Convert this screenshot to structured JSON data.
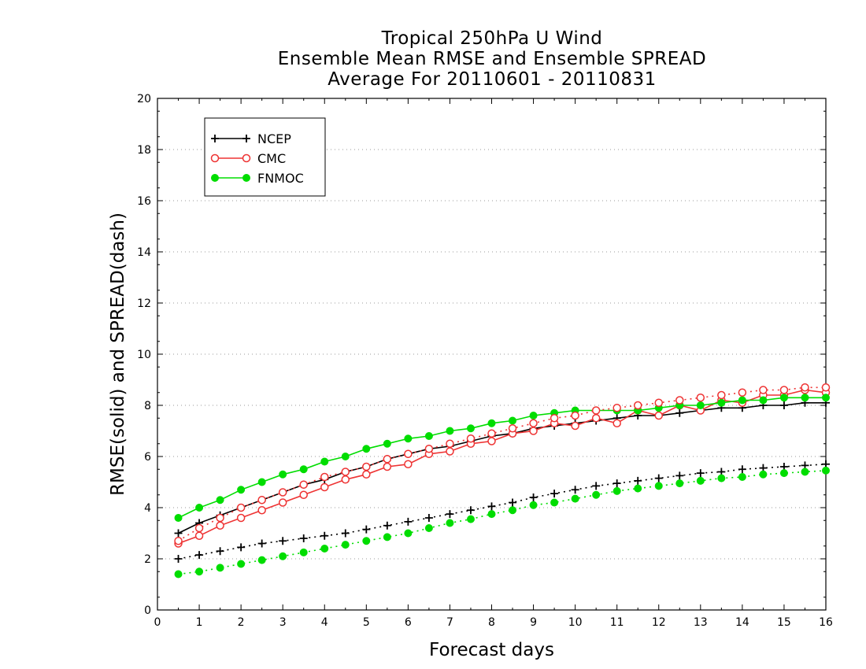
{
  "chart_data": {
    "type": "line",
    "title_lines": [
      "Tropical 250hPa U Wind",
      "Ensemble Mean RMSE and Ensemble SPREAD",
      "Average For 20110601 - 20110831"
    ],
    "xlabel": "Forecast days",
    "ylabel": "RMSE(solid) and SPREAD(dash)",
    "xlim": [
      0,
      16
    ],
    "ylim": [
      0,
      20
    ],
    "xticks": [
      0,
      1,
      2,
      3,
      4,
      5,
      6,
      7,
      8,
      9,
      10,
      11,
      12,
      13,
      14,
      15,
      16
    ],
    "yticks": [
      0,
      2,
      4,
      6,
      8,
      10,
      12,
      14,
      16,
      18,
      20
    ],
    "grid": "horizontal-dotted",
    "legend_position": "top-left",
    "x": [
      0.5,
      1,
      1.5,
      2,
      2.5,
      3,
      3.5,
      4,
      4.5,
      5,
      5.5,
      6,
      6.5,
      7,
      7.5,
      8,
      8.5,
      9,
      9.5,
      10,
      10.5,
      11,
      11.5,
      12,
      12.5,
      13,
      13.5,
      14,
      14.5,
      15,
      15.5,
      16
    ],
    "series": [
      {
        "name": "NCEP",
        "color": "#000000",
        "marker": "plus",
        "line": "solid",
        "values": [
          3.0,
          3.4,
          3.7,
          4.0,
          4.3,
          4.6,
          4.9,
          5.1,
          5.4,
          5.6,
          5.9,
          6.1,
          6.3,
          6.4,
          6.6,
          6.8,
          6.9,
          7.1,
          7.2,
          7.3,
          7.4,
          7.5,
          7.6,
          7.6,
          7.7,
          7.8,
          7.9,
          7.9,
          8.0,
          8.0,
          8.1,
          8.1
        ]
      },
      {
        "name": "CMC",
        "color": "#ee3333",
        "marker": "open-circle",
        "line": "solid",
        "values": [
          2.6,
          2.9,
          3.3,
          3.6,
          3.9,
          4.2,
          4.5,
          4.8,
          5.1,
          5.3,
          5.6,
          5.7,
          6.1,
          6.2,
          6.5,
          6.6,
          6.9,
          7.0,
          7.3,
          7.2,
          7.5,
          7.3,
          7.8,
          7.6,
          8.0,
          7.8,
          8.2,
          8.1,
          8.4,
          8.4,
          8.6,
          8.5
        ]
      },
      {
        "name": "FNMOC",
        "color": "#00dd00",
        "marker": "filled-circle",
        "line": "solid",
        "values": [
          3.6,
          4.0,
          4.3,
          4.7,
          5.0,
          5.3,
          5.5,
          5.8,
          6.0,
          6.3,
          6.5,
          6.7,
          6.8,
          7.0,
          7.1,
          7.3,
          7.4,
          7.6,
          7.7,
          7.8,
          7.8,
          7.8,
          7.8,
          7.9,
          8.0,
          8.0,
          8.1,
          8.2,
          8.2,
          8.3,
          8.3,
          8.3
        ]
      },
      {
        "name": "NCEP",
        "color": "#000000",
        "marker": "plus",
        "line": "dash",
        "values": [
          2.0,
          2.15,
          2.3,
          2.45,
          2.6,
          2.7,
          2.8,
          2.9,
          3.0,
          3.15,
          3.3,
          3.45,
          3.6,
          3.75,
          3.9,
          4.05,
          4.2,
          4.4,
          4.55,
          4.7,
          4.85,
          4.95,
          5.05,
          5.15,
          5.25,
          5.35,
          5.4,
          5.5,
          5.55,
          5.6,
          5.65,
          5.7
        ]
      },
      {
        "name": "CMC",
        "color": "#ee3333",
        "marker": "open-circle",
        "line": "dash",
        "values": [
          2.7,
          3.2,
          3.6,
          4.0,
          4.3,
          4.6,
          4.9,
          5.2,
          5.4,
          5.6,
          5.9,
          6.1,
          6.3,
          6.5,
          6.7,
          6.9,
          7.1,
          7.3,
          7.5,
          7.6,
          7.8,
          7.9,
          8.0,
          8.1,
          8.2,
          8.3,
          8.4,
          8.5,
          8.6,
          8.6,
          8.7,
          8.7
        ]
      },
      {
        "name": "FNMOC",
        "color": "#00dd00",
        "marker": "filled-circle",
        "line": "dash",
        "values": [
          1.4,
          1.5,
          1.65,
          1.8,
          1.95,
          2.1,
          2.25,
          2.4,
          2.55,
          2.7,
          2.85,
          3.0,
          3.2,
          3.4,
          3.55,
          3.75,
          3.9,
          4.1,
          4.2,
          4.35,
          4.5,
          4.65,
          4.75,
          4.85,
          4.95,
          5.05,
          5.15,
          5.2,
          5.3,
          5.35,
          5.4,
          5.45
        ]
      }
    ],
    "legend": [
      {
        "label": "NCEP",
        "color": "#000000",
        "marker": "plus"
      },
      {
        "label": "CMC",
        "color": "#ee3333",
        "marker": "open-circle"
      },
      {
        "label": "FNMOC",
        "color": "#00dd00",
        "marker": "filled-circle"
      }
    ]
  }
}
